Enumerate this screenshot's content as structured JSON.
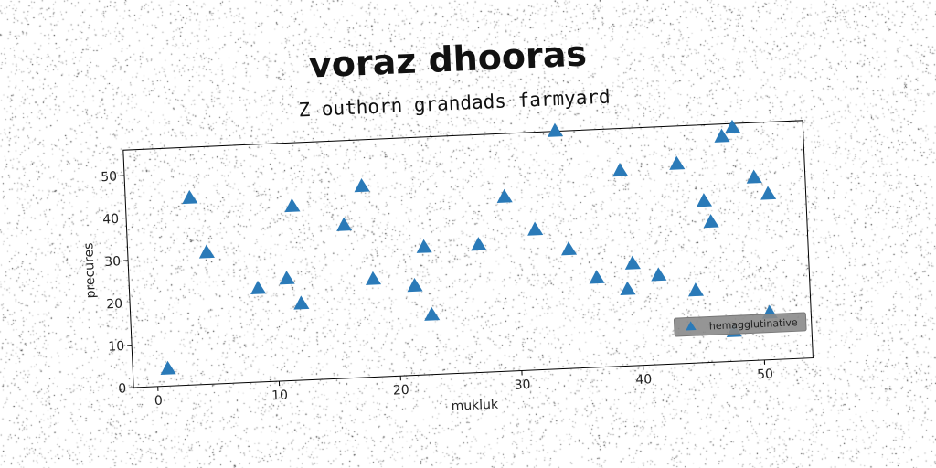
{
  "title": "voraz dhooras",
  "subtitle": "Z outhorn grandads farmyard",
  "chart_data": {
    "type": "scatter",
    "title": "Z outhorn grandads farmyard",
    "xlabel": "mukluk",
    "ylabel": "precures",
    "xlim": [
      -2,
      54
    ],
    "ylim": [
      0,
      56
    ],
    "xticks": [
      0,
      10,
      20,
      30,
      40,
      50
    ],
    "yticks": [
      0,
      10,
      20,
      30,
      40,
      50
    ],
    "grid": false,
    "legend_position": "lower-right",
    "series": [
      {
        "name": "hemagglutinative",
        "marker": "triangle",
        "color": "#2a7ab8",
        "x": [
          0.9,
          3.3,
          4.5,
          8.6,
          11.0,
          11.7,
          12.1,
          15.9,
          17.5,
          18.1,
          21.5,
          22.4,
          22.8,
          26.9,
          29.2,
          31.6,
          33.6,
          34.3,
          36.5,
          38.8,
          39.0,
          39.5,
          41.6,
          43.5,
          44.6,
          45.6,
          46.1,
          47.3,
          47.6,
          48.2,
          49.8,
          50.6,
          50.9
        ],
        "y": [
          4,
          44,
          31,
          22,
          24,
          41,
          18,
          36,
          45,
          23,
          21,
          30,
          14,
          30,
          41,
          33,
          56,
          28,
          21,
          46,
          18,
          24,
          21,
          47,
          17,
          38,
          33,
          53,
          7,
          55,
          43,
          11,
          39
        ]
      }
    ]
  }
}
